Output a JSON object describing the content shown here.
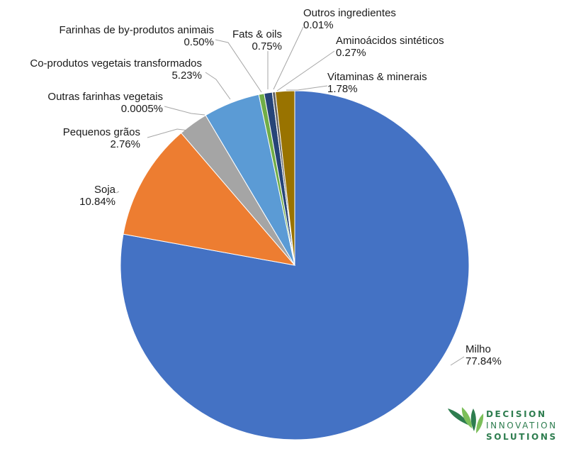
{
  "chart_data": {
    "type": "pie",
    "title": "",
    "start_angle_deg": 0,
    "direction": "clockwise",
    "slices": [
      {
        "label": "Milho",
        "value": 77.84,
        "value_label": "77.84%",
        "color": "#4472C4"
      },
      {
        "label": "Soja",
        "value": 10.84,
        "value_label": "10.84%",
        "color": "#ED7D31"
      },
      {
        "label": "Pequenos grãos",
        "value": 2.76,
        "value_label": "2.76%",
        "color": "#A5A5A5"
      },
      {
        "label": "Outras farinhas vegetais",
        "value": 0.0005,
        "value_label": "0.0005%",
        "color": "#FFC000"
      },
      {
        "label": "Co-produtos vegetais transformados",
        "value": 5.23,
        "value_label": "5.23%",
        "color": "#5B9BD5"
      },
      {
        "label": "Farinhas de by-produtos animais",
        "value": 0.5,
        "value_label": "0.50%",
        "color": "#70AD47"
      },
      {
        "label": "Fats & oils",
        "value": 0.75,
        "value_label": "0.75%",
        "color": "#264478"
      },
      {
        "label": "Outros ingredientes",
        "value": 0.01,
        "value_label": "0.01%",
        "color": "#9E480E"
      },
      {
        "label": "Aminoácidos sintéticos",
        "value": 0.27,
        "value_label": "0.27%",
        "color": "#636363"
      },
      {
        "label": "Vitaminas & minerais",
        "value": 1.78,
        "value_label": "1.78%",
        "color": "#997300"
      }
    ]
  },
  "logo": {
    "line1": "DECISION",
    "line2": "INNOVATION",
    "line3": "SOLUTIONS",
    "color_dark": "#2e7d4f",
    "color_light": "#7cbf5a"
  }
}
